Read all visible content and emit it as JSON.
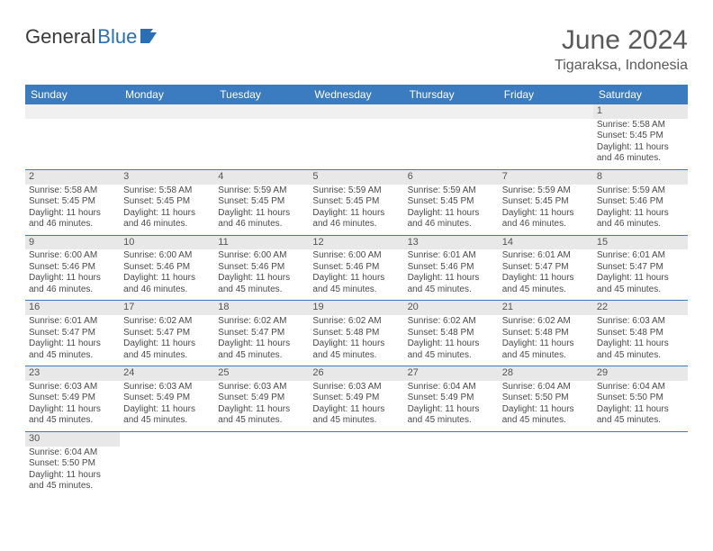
{
  "brand": {
    "part1": "General",
    "part2": "Blue"
  },
  "title": "June 2024",
  "location": "Tigaraksa, Indonesia",
  "colors": {
    "header_bg": "#3b7bbf",
    "header_fg": "#ffffff",
    "daynum_bg": "#e8e8e8",
    "blank_bg": "#f0f0f0",
    "rule": "#3b7bbf",
    "title_color": "#5a5a5a",
    "text_color": "#4a4a4a"
  },
  "weekdays": [
    "Sunday",
    "Monday",
    "Tuesday",
    "Wednesday",
    "Thursday",
    "Friday",
    "Saturday"
  ],
  "weeks": [
    [
      null,
      null,
      null,
      null,
      null,
      null,
      {
        "n": "1",
        "sr": "Sunrise: 5:58 AM",
        "ss": "Sunset: 5:45 PM",
        "d1": "Daylight: 11 hours",
        "d2": "and 46 minutes."
      }
    ],
    [
      {
        "n": "2",
        "sr": "Sunrise: 5:58 AM",
        "ss": "Sunset: 5:45 PM",
        "d1": "Daylight: 11 hours",
        "d2": "and 46 minutes."
      },
      {
        "n": "3",
        "sr": "Sunrise: 5:58 AM",
        "ss": "Sunset: 5:45 PM",
        "d1": "Daylight: 11 hours",
        "d2": "and 46 minutes."
      },
      {
        "n": "4",
        "sr": "Sunrise: 5:59 AM",
        "ss": "Sunset: 5:45 PM",
        "d1": "Daylight: 11 hours",
        "d2": "and 46 minutes."
      },
      {
        "n": "5",
        "sr": "Sunrise: 5:59 AM",
        "ss": "Sunset: 5:45 PM",
        "d1": "Daylight: 11 hours",
        "d2": "and 46 minutes."
      },
      {
        "n": "6",
        "sr": "Sunrise: 5:59 AM",
        "ss": "Sunset: 5:45 PM",
        "d1": "Daylight: 11 hours",
        "d2": "and 46 minutes."
      },
      {
        "n": "7",
        "sr": "Sunrise: 5:59 AM",
        "ss": "Sunset: 5:45 PM",
        "d1": "Daylight: 11 hours",
        "d2": "and 46 minutes."
      },
      {
        "n": "8",
        "sr": "Sunrise: 5:59 AM",
        "ss": "Sunset: 5:46 PM",
        "d1": "Daylight: 11 hours",
        "d2": "and 46 minutes."
      }
    ],
    [
      {
        "n": "9",
        "sr": "Sunrise: 6:00 AM",
        "ss": "Sunset: 5:46 PM",
        "d1": "Daylight: 11 hours",
        "d2": "and 46 minutes."
      },
      {
        "n": "10",
        "sr": "Sunrise: 6:00 AM",
        "ss": "Sunset: 5:46 PM",
        "d1": "Daylight: 11 hours",
        "d2": "and 46 minutes."
      },
      {
        "n": "11",
        "sr": "Sunrise: 6:00 AM",
        "ss": "Sunset: 5:46 PM",
        "d1": "Daylight: 11 hours",
        "d2": "and 45 minutes."
      },
      {
        "n": "12",
        "sr": "Sunrise: 6:00 AM",
        "ss": "Sunset: 5:46 PM",
        "d1": "Daylight: 11 hours",
        "d2": "and 45 minutes."
      },
      {
        "n": "13",
        "sr": "Sunrise: 6:01 AM",
        "ss": "Sunset: 5:46 PM",
        "d1": "Daylight: 11 hours",
        "d2": "and 45 minutes."
      },
      {
        "n": "14",
        "sr": "Sunrise: 6:01 AM",
        "ss": "Sunset: 5:47 PM",
        "d1": "Daylight: 11 hours",
        "d2": "and 45 minutes."
      },
      {
        "n": "15",
        "sr": "Sunrise: 6:01 AM",
        "ss": "Sunset: 5:47 PM",
        "d1": "Daylight: 11 hours",
        "d2": "and 45 minutes."
      }
    ],
    [
      {
        "n": "16",
        "sr": "Sunrise: 6:01 AM",
        "ss": "Sunset: 5:47 PM",
        "d1": "Daylight: 11 hours",
        "d2": "and 45 minutes."
      },
      {
        "n": "17",
        "sr": "Sunrise: 6:02 AM",
        "ss": "Sunset: 5:47 PM",
        "d1": "Daylight: 11 hours",
        "d2": "and 45 minutes."
      },
      {
        "n": "18",
        "sr": "Sunrise: 6:02 AM",
        "ss": "Sunset: 5:47 PM",
        "d1": "Daylight: 11 hours",
        "d2": "and 45 minutes."
      },
      {
        "n": "19",
        "sr": "Sunrise: 6:02 AM",
        "ss": "Sunset: 5:48 PM",
        "d1": "Daylight: 11 hours",
        "d2": "and 45 minutes."
      },
      {
        "n": "20",
        "sr": "Sunrise: 6:02 AM",
        "ss": "Sunset: 5:48 PM",
        "d1": "Daylight: 11 hours",
        "d2": "and 45 minutes."
      },
      {
        "n": "21",
        "sr": "Sunrise: 6:02 AM",
        "ss": "Sunset: 5:48 PM",
        "d1": "Daylight: 11 hours",
        "d2": "and 45 minutes."
      },
      {
        "n": "22",
        "sr": "Sunrise: 6:03 AM",
        "ss": "Sunset: 5:48 PM",
        "d1": "Daylight: 11 hours",
        "d2": "and 45 minutes."
      }
    ],
    [
      {
        "n": "23",
        "sr": "Sunrise: 6:03 AM",
        "ss": "Sunset: 5:49 PM",
        "d1": "Daylight: 11 hours",
        "d2": "and 45 minutes."
      },
      {
        "n": "24",
        "sr": "Sunrise: 6:03 AM",
        "ss": "Sunset: 5:49 PM",
        "d1": "Daylight: 11 hours",
        "d2": "and 45 minutes."
      },
      {
        "n": "25",
        "sr": "Sunrise: 6:03 AM",
        "ss": "Sunset: 5:49 PM",
        "d1": "Daylight: 11 hours",
        "d2": "and 45 minutes."
      },
      {
        "n": "26",
        "sr": "Sunrise: 6:03 AM",
        "ss": "Sunset: 5:49 PM",
        "d1": "Daylight: 11 hours",
        "d2": "and 45 minutes."
      },
      {
        "n": "27",
        "sr": "Sunrise: 6:04 AM",
        "ss": "Sunset: 5:49 PM",
        "d1": "Daylight: 11 hours",
        "d2": "and 45 minutes."
      },
      {
        "n": "28",
        "sr": "Sunrise: 6:04 AM",
        "ss": "Sunset: 5:50 PM",
        "d1": "Daylight: 11 hours",
        "d2": "and 45 minutes."
      },
      {
        "n": "29",
        "sr": "Sunrise: 6:04 AM",
        "ss": "Sunset: 5:50 PM",
        "d1": "Daylight: 11 hours",
        "d2": "and 45 minutes."
      }
    ],
    [
      {
        "n": "30",
        "sr": "Sunrise: 6:04 AM",
        "ss": "Sunset: 5:50 PM",
        "d1": "Daylight: 11 hours",
        "d2": "and 45 minutes."
      },
      null,
      null,
      null,
      null,
      null,
      null
    ]
  ]
}
